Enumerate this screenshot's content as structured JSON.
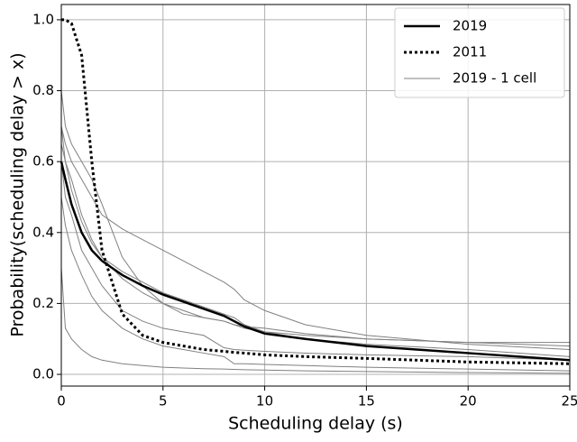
{
  "chart_data": {
    "type": "line",
    "xlabel": "Scheduling delay (s)",
    "ylabel": "Probability(scheduling delay > x)",
    "x": [
      0,
      0.2,
      0.5,
      1,
      1.5,
      2,
      3,
      4,
      5,
      6,
      7,
      8,
      8.5,
      9,
      10,
      12,
      15,
      20,
      25
    ],
    "series": [
      {
        "name": "2019",
        "color": "#000000",
        "linewidth": 2.5,
        "linestyle": "solid",
        "values": [
          0.6,
          0.55,
          0.48,
          0.4,
          0.35,
          0.32,
          0.28,
          0.25,
          0.225,
          0.205,
          0.185,
          0.165,
          0.15,
          0.135,
          0.115,
          0.1,
          0.08,
          0.06,
          0.04
        ]
      },
      {
        "name": "2011",
        "color": "#000000",
        "linewidth": 3,
        "linestyle": "dotted",
        "values": [
          1.0,
          1.0,
          0.99,
          0.9,
          0.6,
          0.35,
          0.17,
          0.11,
          0.09,
          0.08,
          0.07,
          0.065,
          0.062,
          0.06,
          0.055,
          0.05,
          0.045,
          0.035,
          0.03
        ]
      },
      {
        "name": "2019 - 1 cell",
        "color": "#808080",
        "linewidth": 1,
        "linestyle": "solid",
        "values": [
          0.7,
          0.65,
          0.6,
          0.55,
          0.5,
          0.45,
          0.41,
          0.38,
          0.35,
          0.32,
          0.29,
          0.26,
          0.24,
          0.21,
          0.18,
          0.14,
          0.11,
          0.085,
          0.07
        ]
      },
      {
        "color": "#808080",
        "linewidth": 1,
        "linestyle": "solid",
        "values": [
          0.65,
          0.6,
          0.52,
          0.43,
          0.37,
          0.33,
          0.29,
          0.26,
          0.23,
          0.21,
          0.19,
          0.17,
          0.16,
          0.14,
          0.12,
          0.1,
          0.085,
          0.07,
          0.05
        ]
      },
      {
        "color": "#808080",
        "linewidth": 1,
        "linestyle": "solid",
        "values": [
          0.8,
          0.7,
          0.65,
          0.6,
          0.55,
          0.48,
          0.33,
          0.25,
          0.2,
          0.17,
          0.16,
          0.15,
          0.14,
          0.13,
          0.12,
          0.11,
          0.1,
          0.09,
          0.09
        ]
      },
      {
        "color": "#808080",
        "linewidth": 1,
        "linestyle": "solid",
        "values": [
          0.6,
          0.5,
          0.45,
          0.35,
          0.3,
          0.25,
          0.18,
          0.15,
          0.13,
          0.12,
          0.11,
          0.075,
          0.07,
          0.068,
          0.065,
          0.06,
          0.055,
          0.05,
          0.04
        ]
      },
      {
        "color": "#808080",
        "linewidth": 1,
        "linestyle": "solid",
        "values": [
          0.5,
          0.42,
          0.35,
          0.28,
          0.22,
          0.18,
          0.13,
          0.1,
          0.08,
          0.07,
          0.06,
          0.05,
          0.03,
          0.03,
          0.028,
          0.025,
          0.02,
          0.015,
          0.01
        ]
      },
      {
        "color": "#808080",
        "linewidth": 1,
        "linestyle": "solid",
        "values": [
          0.3,
          0.13,
          0.1,
          0.07,
          0.05,
          0.04,
          0.03,
          0.025,
          0.02,
          0.018,
          0.016,
          0.015,
          0.014,
          0.013,
          0.012,
          0.01,
          0.008,
          0.005,
          0.003
        ]
      },
      {
        "color": "#808080",
        "linewidth": 1,
        "linestyle": "solid",
        "values": [
          0.7,
          0.6,
          0.55,
          0.45,
          0.38,
          0.33,
          0.27,
          0.23,
          0.2,
          0.18,
          0.16,
          0.15,
          0.14,
          0.135,
          0.13,
          0.115,
          0.1,
          0.09,
          0.08
        ]
      }
    ],
    "xlim": [
      0,
      25
    ],
    "xticks": [
      0,
      5,
      10,
      15,
      20,
      25
    ],
    "ylim": [
      -0.033,
      1.043
    ],
    "yticks": [
      {
        "value": 0,
        "label": "0.0"
      },
      {
        "value": 0.2,
        "label": "0.2"
      },
      {
        "value": 0.4,
        "label": "0.4"
      },
      {
        "value": 0.6,
        "label": "0.6"
      },
      {
        "value": 0.8,
        "label": "0.8"
      },
      {
        "value": 1,
        "label": "1.0"
      }
    ],
    "grid": true,
    "legend": "upper right"
  }
}
